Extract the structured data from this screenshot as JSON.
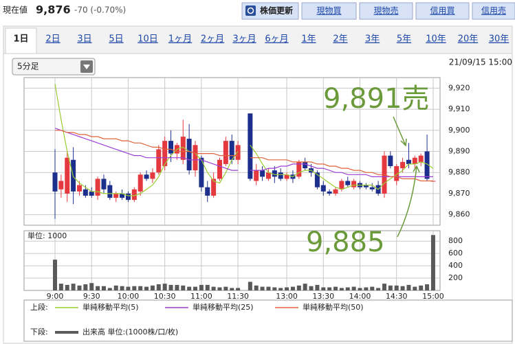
{
  "header": {
    "label": "現在値",
    "price": "9,876",
    "change": "-70 (-0.70%)"
  },
  "buttons": [
    "株価更新",
    "現物買",
    "現物売",
    "信用買",
    "信用売"
  ],
  "tabs": [
    "1日",
    "2日",
    "3日",
    "5日",
    "10日",
    "1ヶ月",
    "2ヶ月",
    "3ヶ月",
    "6ヶ月",
    "1年",
    "2年",
    "3年",
    "5年",
    "10年",
    "20年",
    "30年"
  ],
  "interval": "5分足",
  "timestamp": "21/09/15 15:00",
  "annotations": [
    "9,891売",
    "9,885"
  ],
  "annotation_color": "#6a9a3a",
  "chart_data": [
    {
      "type": "candlestick",
      "categories": [
        "9:00",
        null,
        null,
        null,
        null,
        null,
        "9:30",
        null,
        null,
        null,
        null,
        null,
        "10:00",
        null,
        null,
        null,
        null,
        null,
        "10:30",
        null,
        null,
        null,
        null,
        null,
        "11:00",
        null,
        null,
        null,
        null,
        null,
        "11:30",
        null,
        null,
        null,
        null,
        null,
        null,
        null,
        "13:00",
        null,
        null,
        null,
        null,
        null,
        "13:30",
        null,
        null,
        null,
        null,
        null,
        "14:00",
        null,
        null,
        null,
        null,
        null,
        "14:30",
        null,
        null,
        null,
        null,
        null,
        "15:00"
      ],
      "open": [
        9880,
        9872,
        9870,
        9886,
        9871,
        9872,
        9871,
        9869,
        9877,
        9874,
        9868,
        9870,
        9870,
        9867,
        9871,
        9879,
        9877,
        9880,
        9883,
        9895,
        9889,
        9886,
        9896,
        9881,
        9887,
        9873,
        9869,
        9877,
        9884,
        9895,
        9886,
        null,
        9908,
        9876,
        9881,
        9877,
        9881,
        9880,
        9877,
        9879,
        9878,
        9885,
        9882,
        9880,
        9874,
        9871,
        9870,
        9872,
        9876,
        9873,
        9875,
        9874,
        9873,
        9874,
        9870,
        9888,
        9876,
        9882,
        9886,
        9884,
        9885,
        9890,
        9876
      ],
      "high": [
        9891,
        9879,
        9890,
        9892,
        9876,
        9874,
        9873,
        9878,
        9879,
        9876,
        9871,
        9872,
        9871,
        9873,
        9880,
        9881,
        9882,
        9893,
        9897,
        9900,
        9894,
        9905,
        9903,
        9895,
        9888,
        9876,
        9880,
        9887,
        9897,
        9898,
        9895,
        null,
        9908,
        9884,
        9883,
        9882,
        9883,
        9882,
        9880,
        9881,
        9886,
        9887,
        9884,
        9881,
        9876,
        9872,
        9873,
        9877,
        9878,
        9877,
        9876,
        9875,
        9875,
        9876,
        9890,
        9890,
        9884,
        9887,
        9894,
        9888,
        9889,
        9898,
        9876
      ],
      "low": [
        9858,
        9868,
        9866,
        9865,
        9869,
        9868,
        9868,
        9867,
        9870,
        9867,
        9866,
        9867,
        9866,
        9866,
        9869,
        9876,
        9875,
        9879,
        9881,
        9885,
        9886,
        9884,
        9879,
        9878,
        9871,
        9866,
        9868,
        9876,
        9883,
        9884,
        9884,
        null,
        9876,
        9874,
        9876,
        9876,
        9875,
        9876,
        9876,
        9875,
        9877,
        9881,
        9878,
        9872,
        9869,
        9869,
        9869,
        9871,
        9873,
        9872,
        9872,
        9872,
        9871,
        9869,
        9868,
        9882,
        9874,
        9880,
        9882,
        9882,
        9883,
        9876,
        9876
      ],
      "close": [
        9871,
        9876,
        9887,
        9871,
        9874,
        9869,
        9869,
        9877,
        9872,
        9868,
        9870,
        9868,
        9867,
        9872,
        9879,
        9877,
        9880,
        9891,
        9895,
        9889,
        9893,
        9897,
        9881,
        9893,
        9873,
        9869,
        9877,
        9886,
        9895,
        9886,
        9893,
        null,
        9877,
        9881,
        9878,
        9880,
        9878,
        9877,
        9879,
        9877,
        9885,
        9882,
        9880,
        9873,
        9871,
        9870,
        9872,
        9876,
        9874,
        9876,
        9873,
        9873,
        9872,
        9870,
        9888,
        9883,
        9883,
        9885,
        9884,
        9887,
        9888,
        9877,
        9876
      ],
      "up_color": "#e3393f",
      "down_color": "#1d2f8c",
      "legend_label": "上段:",
      "series": [
        {
          "name": "単純移動平均(5)",
          "color": "#9acd32",
          "values": [
            9922,
            9905,
            9890,
            9878,
            9875,
            9873,
            9871,
            9871,
            9870,
            9870,
            9870,
            9870,
            9869,
            9869,
            9870,
            9872,
            9874,
            9878,
            9884,
            9888,
            9891,
            9892,
            9890,
            9889,
            9886,
            9880,
            9876,
            9875,
            9880,
            9886,
            9890,
            null,
            9893,
            9889,
            9884,
            9880,
            9879,
            9879,
            9879,
            9878,
            9880,
            9881,
            9881,
            9879,
            9877,
            9875,
            9873,
            9872,
            9873,
            9874,
            9874,
            9874,
            9874,
            9872,
            9875,
            9877,
            9879,
            9881,
            9884,
            9884,
            9885,
            9884,
            9882
          ]
        },
        {
          "name": "単純移動平均(25)",
          "color": "#9b3fd6",
          "values": [
            9901,
            9900,
            9899,
            9898,
            9897,
            9896,
            9895,
            9894,
            9893,
            9892,
            9891,
            9890,
            9889,
            9888,
            9888,
            9887,
            9887,
            9887,
            9887,
            9887,
            9887,
            9887,
            9886,
            9886,
            9886,
            9885,
            9884,
            9883,
            9882,
            9881,
            9881,
            null,
            9881,
            9881,
            9881,
            9882,
            9882,
            9883,
            9883,
            9884,
            9884,
            9884,
            9883,
            9882,
            9882,
            9881,
            9880,
            9880,
            9879,
            9879,
            9879,
            9879,
            9878,
            9878,
            9878,
            9878,
            9878,
            9878,
            9878,
            9878,
            9878,
            9878,
            9878
          ]
        },
        {
          "name": "単純移動平均(50)",
          "color": "#e0623a",
          "values": [
            9900,
            9900,
            9899,
            9899,
            9898,
            9898,
            9897,
            9897,
            9896,
            9896,
            9896,
            9895,
            9895,
            9894,
            9894,
            9893,
            9892,
            9892,
            9891,
            9891,
            9890,
            9890,
            9890,
            9889,
            9889,
            9889,
            9889,
            9888,
            9888,
            9888,
            9888,
            null,
            9887,
            9887,
            9887,
            9886,
            9886,
            9886,
            9886,
            9885,
            9885,
            9885,
            9885,
            9884,
            9884,
            9883,
            9883,
            9882,
            9882,
            9881,
            9881,
            9880,
            9880,
            9879,
            9879,
            9878,
            9878,
            9877,
            9877,
            9877,
            9876,
            9876,
            9876
          ]
        }
      ],
      "ylim": [
        9855,
        9925
      ],
      "yticks": [
        {
          "value": 9860,
          "label": "9,860"
        },
        {
          "value": 9870,
          "label": "9,870"
        },
        {
          "value": 9880,
          "label": "9,880"
        },
        {
          "value": 9890,
          "label": "9,890"
        },
        {
          "value": 9900,
          "label": "9,900"
        },
        {
          "value": 9910,
          "label": "9,910"
        },
        {
          "value": 9920,
          "label": "9,920"
        }
      ],
      "grid": true
    },
    {
      "type": "bar",
      "unit_label": "単位: 1000",
      "legend_label": "下段:",
      "series": [
        {
          "name": "出来高 単位:(1000株/口/枚)",
          "color": "#5a5a5a",
          "values": [
            500,
            110,
            90,
            110,
            80,
            100,
            120,
            70,
            70,
            40,
            80,
            70,
            60,
            70,
            70,
            60,
            80,
            100,
            110,
            90,
            90,
            80,
            60,
            60,
            90,
            90,
            60,
            50,
            60,
            40,
            40,
            null,
            140,
            80,
            60,
            60,
            50,
            40,
            50,
            60,
            80,
            110,
            70,
            90,
            50,
            50,
            60,
            40,
            50,
            60,
            40,
            50,
            60,
            40,
            110,
            80,
            80,
            70,
            90,
            60,
            80,
            100,
            900
          ]
        }
      ],
      "ylim": [
        0,
        970
      ],
      "yticks": [
        200,
        400,
        600,
        800
      ],
      "grid": true
    }
  ]
}
